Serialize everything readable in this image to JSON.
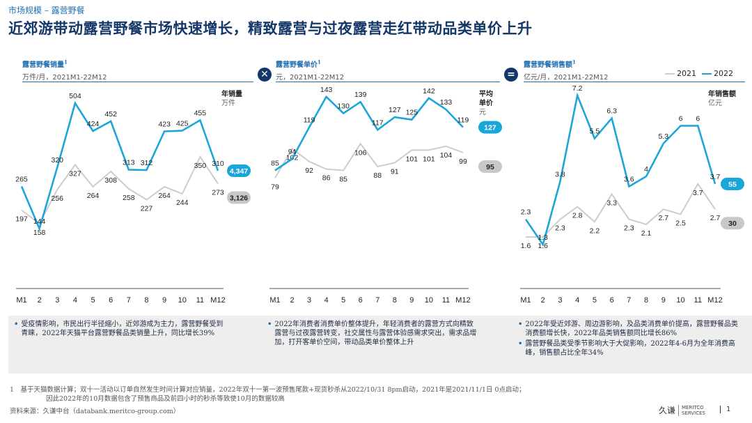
{
  "header": {
    "breadcrumb": "市场规模 – 露营野餐",
    "title": "近郊游带动露营野餐市场快速增长，精致露营与过夜露营走红带动品类单价上升"
  },
  "legend": {
    "label_2021": "2021",
    "label_2022": "2022",
    "color_2021": "#cccccc",
    "color_2022": "#1ba6d9"
  },
  "operators": {
    "times": "✕",
    "equals": "="
  },
  "x_ticks": [
    "M1",
    "2",
    "3",
    "4",
    "5",
    "6",
    "7",
    "8",
    "9",
    "10",
    "11",
    "M12"
  ],
  "chart_data": [
    {
      "type": "line",
      "title": "露营野餐销量",
      "title_sup": "1",
      "unit": "万件/月，2021M1-22M12",
      "side_label": "年销量",
      "side_unit": "万件",
      "categories": [
        "M1",
        "2",
        "3",
        "4",
        "5",
        "6",
        "7",
        "8",
        "9",
        "10",
        "11",
        "M12"
      ],
      "series": [
        {
          "name": "2021",
          "values": [
            197,
            158,
            256,
            327,
            264,
            308,
            258,
            227,
            264,
            244,
            350,
            273
          ],
          "total": "3,126"
        },
        {
          "name": "2022",
          "values": [
            265,
            144,
            320,
            504,
            424,
            452,
            313,
            312,
            423,
            425,
            455,
            310
          ],
          "total": "4,347"
        }
      ],
      "ylim": [
        100,
        560
      ]
    },
    {
      "type": "line",
      "title": "露营野餐单价",
      "title_sup": "1",
      "unit": "元，2021M1-22M12",
      "side_label": "平均单价",
      "side_unit": "元",
      "categories": [
        "M1",
        "2",
        "3",
        "4",
        "5",
        "6",
        "7",
        "8",
        "9",
        "10",
        "11",
        "M12"
      ],
      "series": [
        {
          "name": "2021",
          "values": [
            79,
            102,
            92,
            86,
            85,
            106,
            88,
            91,
            101,
            101,
            104,
            99
          ],
          "total": "95"
        },
        {
          "name": "2022",
          "values": [
            85,
            94,
            119,
            143,
            130,
            139,
            117,
            127,
            125,
            142,
            133,
            119
          ],
          "total": "127"
        }
      ],
      "ylim": [
        60,
        160
      ]
    },
    {
      "type": "line",
      "title": "露营野餐销售额",
      "title_sup": "1",
      "unit": "亿元/月，2021M1-22M12",
      "side_label": "年销售额",
      "side_unit": "亿元",
      "categories": [
        "M1",
        "2",
        "3",
        "4",
        "5",
        "6",
        "7",
        "8",
        "9",
        "10",
        "11",
        "M12"
      ],
      "series": [
        {
          "name": "2021",
          "values": [
            1.6,
            1.6,
            2.3,
            2.8,
            2.2,
            3.3,
            2.3,
            2.1,
            2.7,
            2.5,
            3.7,
            2.7
          ],
          "total": "30"
        },
        {
          "name": "2022",
          "values": [
            2.3,
            1.3,
            3.8,
            7.2,
            5.5,
            6.3,
            3.6,
            4.0,
            5.3,
            6.0,
            6.0,
            3.7
          ],
          "total": "55"
        }
      ],
      "ylim": [
        0.5,
        8
      ]
    }
  ],
  "notes": [
    [
      "受疫情影响，市民出行半径缩小，近郊游成为主力，露营野餐受到青睐，2022年天猫平台露营野餐品类销量上升，同比增长39%"
    ],
    [
      "2022年消费者消费单价整体提升，年轻消费者的露营方式向精致露营与过夜露营转变，社交属性与露营体验感需求突出，需求品增加，打开客单价空间，带动品类单价整体上升"
    ],
    [
      "2022年受近郊游、周边游影响，及品类消费单价提高，露营野餐品类消费额增长快，2022年品类销售额同比增长86%",
      "露营野餐品类受季节影响大于大促影响，2022年4-6月为全年消费高峰，销售额占比全年34%"
    ]
  ],
  "footnote": {
    "line1": "1　基于天猫数据计算；双十一活动以订单自然发生时间计算对应销量，2022年双十一第一波预售尾款+现货秒杀从2022/10/31 8pm启动，2021年是2021/11/1日 0点启动；",
    "line2": "因此2022年的10月数据包含了预售商品及前四小时的秒杀等致使10月的数据较高"
  },
  "source": "资料来源：久谦中台（databank.meritco-group.com）",
  "logo": {
    "cn": "久谦",
    "en1": "MERITCO",
    "en2": "SERVICES"
  },
  "page_number": "1"
}
